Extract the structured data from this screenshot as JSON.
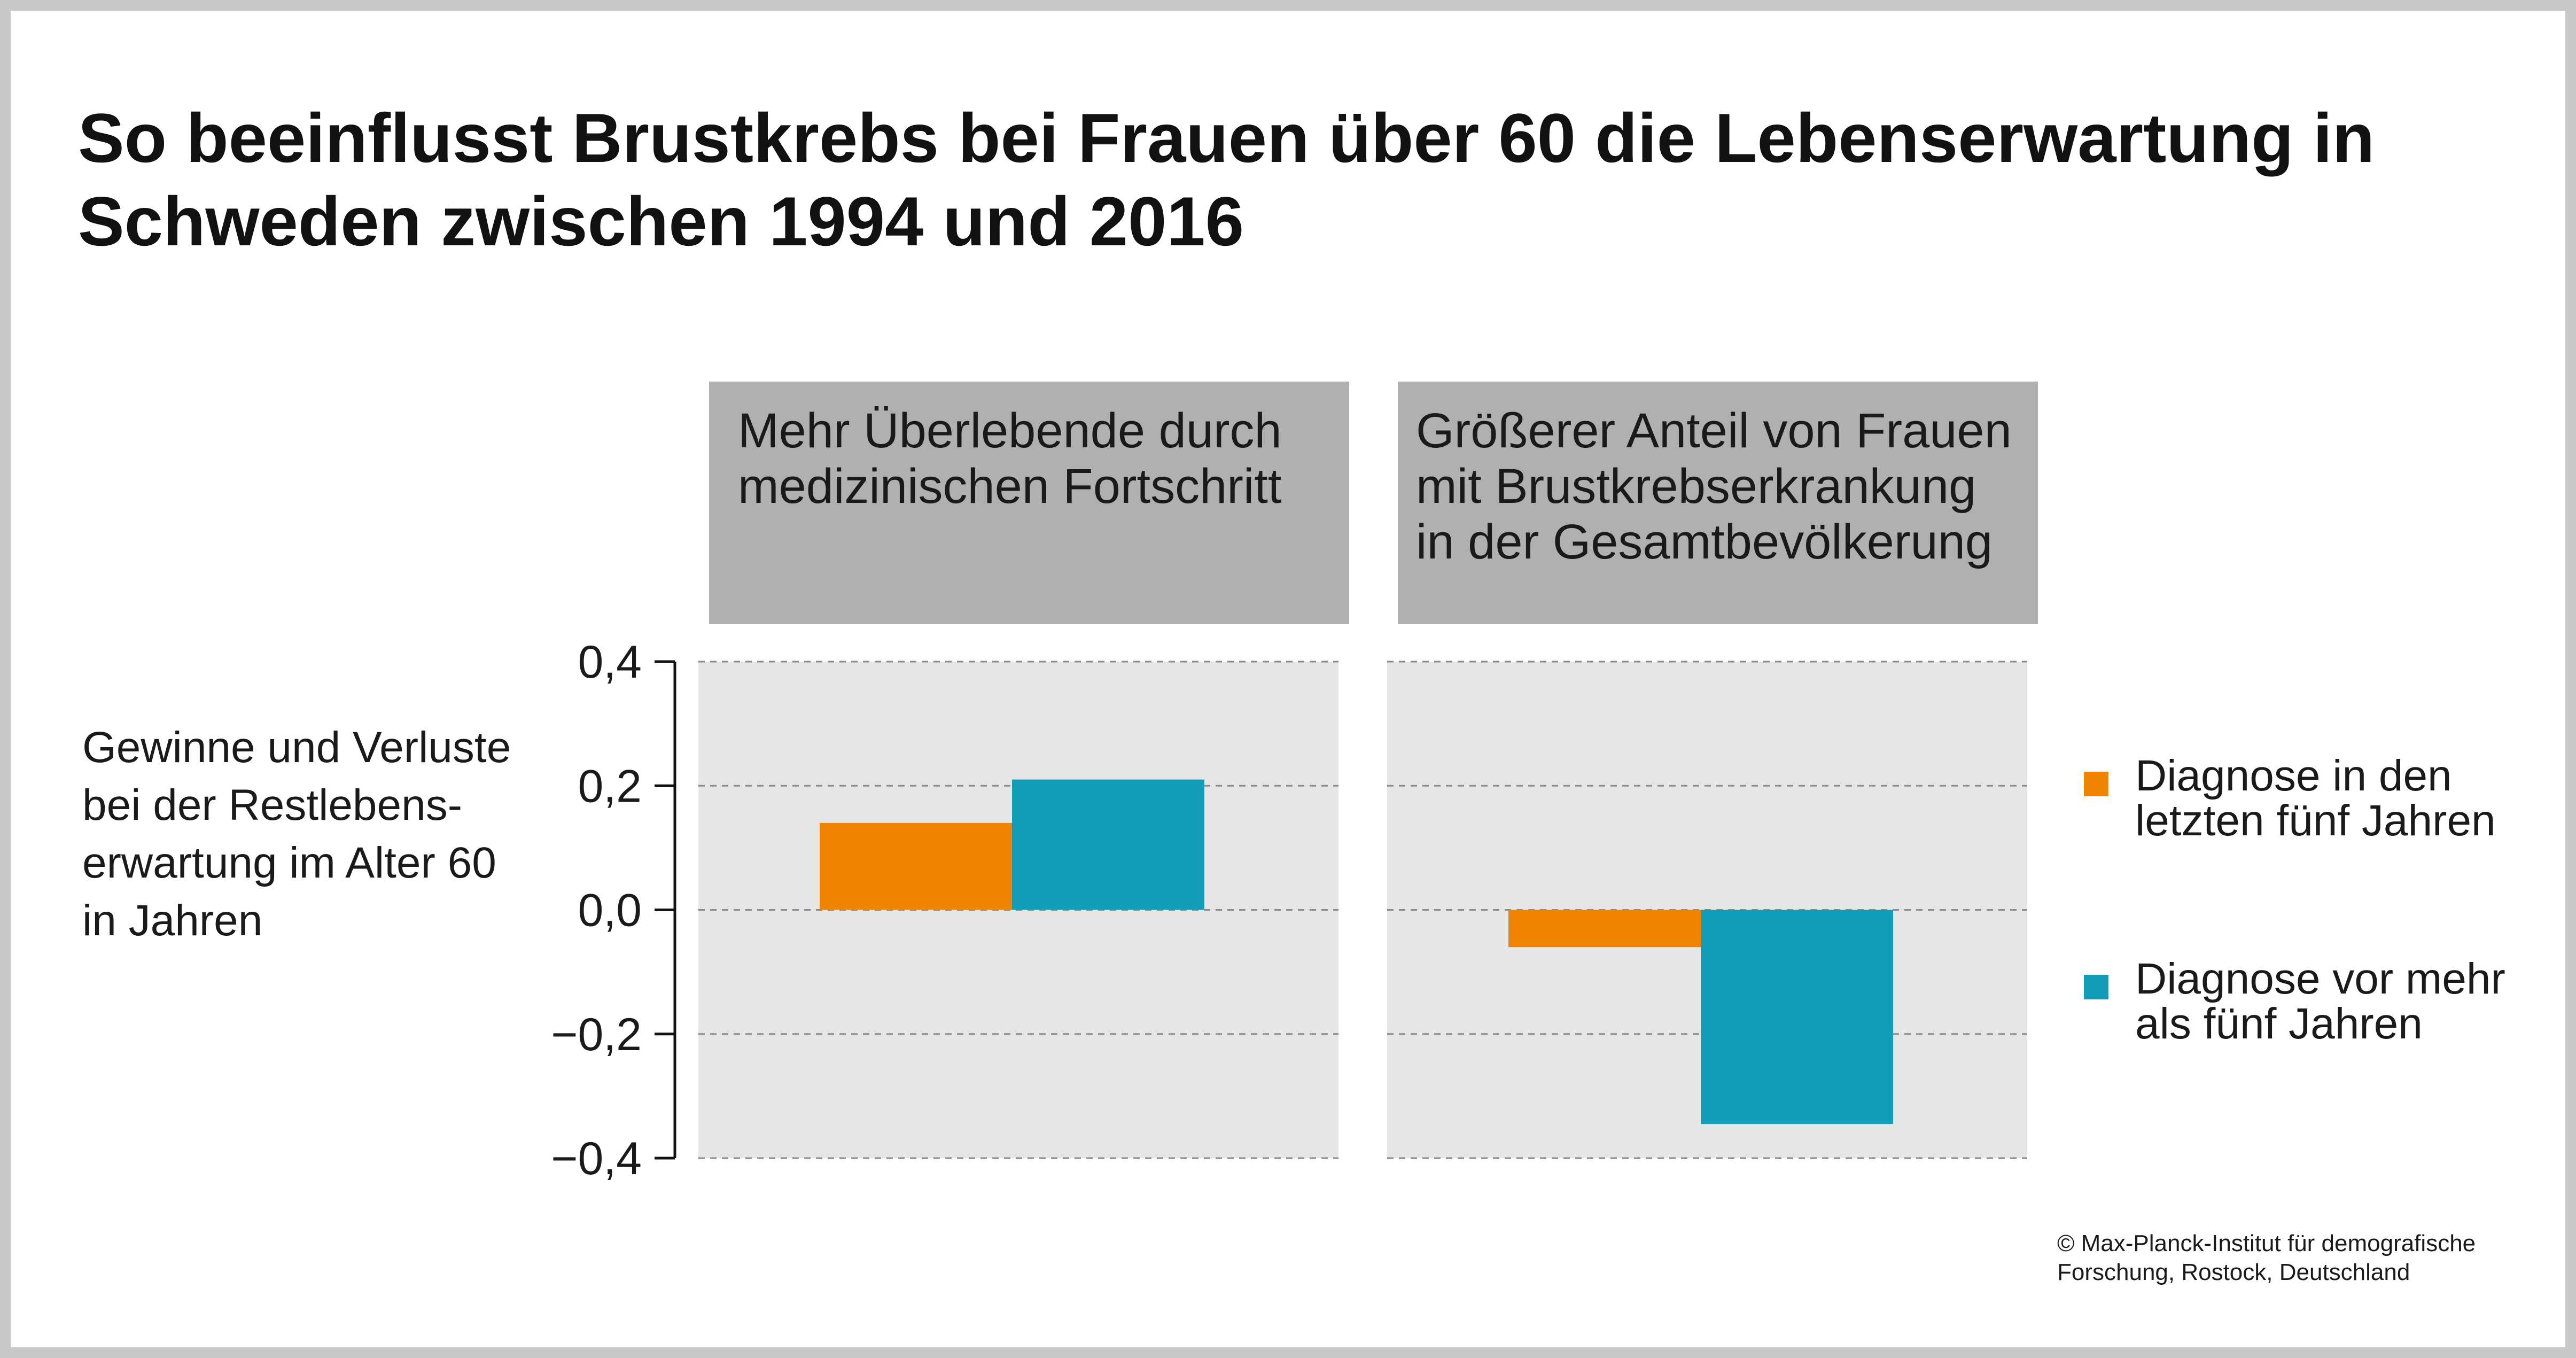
{
  "title": {
    "line1": "So beeinflusst Brustkrebs bei Frauen über 60 die Lebenserwartung in",
    "line2": "Schweden zwischen 1994 und 2016"
  },
  "y_axis_label": {
    "lines": [
      "Gewinne und Verluste",
      "bei der Restlebens-",
      "erwartung im Alter 60",
      "in Jahren"
    ]
  },
  "legend": {
    "items": [
      {
        "lines": [
          "Diagnose in den",
          "letzten fünf Jahren"
        ],
        "color": "#f08400"
      },
      {
        "lines": [
          "Diagnose vor mehr",
          "als fünf Jahren"
        ],
        "color": "#129eb9"
      }
    ]
  },
  "credit": {
    "lines": [
      "© Max-Planck-Institut für demografische",
      "Forschung, Rostock, Deutschland"
    ]
  },
  "colors": {
    "panel_header_bg": "#b0b0b0",
    "panel_plot_bg": "#e6e6e6",
    "gridline": "#8a8a8a",
    "axis": "#111111"
  },
  "chart_data": {
    "type": "bar",
    "facets": [
      {
        "title_lines": [
          "Mehr Überlebende durch",
          "medizinischen Fortschritt"
        ]
      },
      {
        "title_lines": [
          "Größerer Anteil von Frauen",
          "mit Brustkrebserkrankung",
          "in der Gesamtbevölkerung"
        ]
      }
    ],
    "series": [
      {
        "name": "Diagnose in den letzten fünf Jahren",
        "color": "#f08400",
        "values": [
          0.14,
          -0.06
        ]
      },
      {
        "name": "Diagnose vor mehr als fünf Jahren",
        "color": "#129eb9",
        "values": [
          0.21,
          -0.345
        ]
      }
    ],
    "ylim": [
      -0.4,
      0.4
    ],
    "yticks": [
      0.4,
      0.2,
      0.0,
      -0.2,
      -0.4
    ],
    "ytick_labels": [
      "0,4",
      "0,2",
      "0,0",
      "−0,2",
      "−0,4"
    ],
    "grid": true,
    "legend_position": "right"
  }
}
